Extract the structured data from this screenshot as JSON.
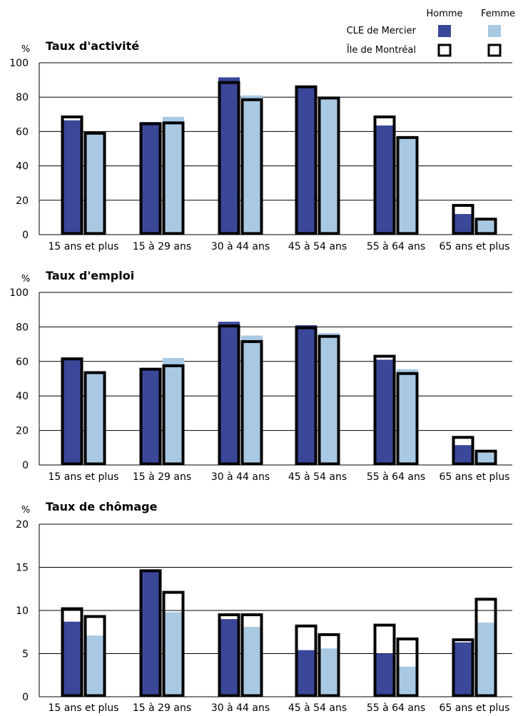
{
  "legend": {
    "col_homme": "Homme",
    "col_femme": "Femme",
    "row_cle": "CLE de Mercier",
    "row_ile": "Île de Montréal",
    "colors": {
      "homme": "#3b4799",
      "femme": "#a9c9e3",
      "outline": "#000000"
    }
  },
  "chart_data": [
    {
      "type": "bar",
      "title": "Taux d'activité",
      "ylabel": "%",
      "ylim": [
        0,
        100
      ],
      "yticks": [
        0,
        20,
        40,
        60,
        80,
        100
      ],
      "categories": [
        "15 ans et plus",
        "15 à 29 ans",
        "30 à 44 ans",
        "45 à 54 ans",
        "55 à 64 ans",
        "65 ans et plus"
      ],
      "series": [
        {
          "name": "Homme",
          "group": "CLE de Mercier",
          "values": [
            66.5,
            65.5,
            91.5,
            86.0,
            63.5,
            12.0
          ]
        },
        {
          "name": "Femme",
          "group": "CLE de Mercier",
          "values": [
            59.0,
            68.5,
            81.0,
            79.5,
            56.5,
            8.0
          ]
        },
        {
          "name": "Homme",
          "group": "Île de Montréal",
          "values": [
            68.5,
            64.5,
            88.5,
            86.0,
            68.5,
            17.0
          ]
        },
        {
          "name": "Femme",
          "group": "Île de Montréal",
          "values": [
            59.0,
            65.0,
            78.5,
            79.5,
            56.5,
            9.0
          ]
        }
      ],
      "grid": true
    },
    {
      "type": "bar",
      "title": "Taux d'emploi",
      "ylabel": "%",
      "ylim": [
        0,
        100
      ],
      "yticks": [
        0,
        20,
        40,
        60,
        80,
        100
      ],
      "categories": [
        "15 ans et plus",
        "15 à 29 ans",
        "30 à 44 ans",
        "45 à 54 ans",
        "55 à 64 ans",
        "65 ans et plus"
      ],
      "series": [
        {
          "name": "Homme",
          "group": "CLE de Mercier",
          "values": [
            61.5,
            55.5,
            83.0,
            81.0,
            61.0,
            11.5
          ]
        },
        {
          "name": "Femme",
          "group": "CLE de Mercier",
          "values": [
            53.5,
            62.0,
            75.0,
            76.5,
            55.5,
            7.0
          ]
        },
        {
          "name": "Homme",
          "group": "Île de Montréal",
          "values": [
            61.5,
            55.5,
            80.5,
            79.5,
            63.0,
            16.0
          ]
        },
        {
          "name": "Femme",
          "group": "Île de Montréal",
          "values": [
            53.5,
            57.5,
            71.5,
            74.5,
            53.0,
            8.0
          ]
        }
      ],
      "grid": true
    },
    {
      "type": "bar",
      "title": "Taux de chômage",
      "ylabel": "%",
      "ylim": [
        0,
        20
      ],
      "yticks": [
        0,
        5,
        10,
        15,
        20
      ],
      "categories": [
        "15 ans et plus",
        "15 à 29 ans",
        "30 à 44 ans",
        "45 à 54 ans",
        "55 à 64 ans",
        "65 ans et plus"
      ],
      "series": [
        {
          "name": "Homme",
          "group": "CLE de Mercier",
          "values": [
            8.7,
            14.6,
            9.0,
            5.4,
            5.0,
            6.3
          ]
        },
        {
          "name": "Femme",
          "group": "CLE de Mercier",
          "values": [
            7.1,
            9.8,
            8.1,
            5.6,
            3.5,
            8.6
          ]
        },
        {
          "name": "Homme",
          "group": "Île de Montréal",
          "values": [
            10.2,
            14.6,
            9.5,
            8.2,
            8.3,
            6.6
          ]
        },
        {
          "name": "Femme",
          "group": "Île de Montréal",
          "values": [
            9.3,
            12.1,
            9.5,
            7.2,
            6.7,
            11.3
          ]
        }
      ],
      "grid": true
    }
  ]
}
